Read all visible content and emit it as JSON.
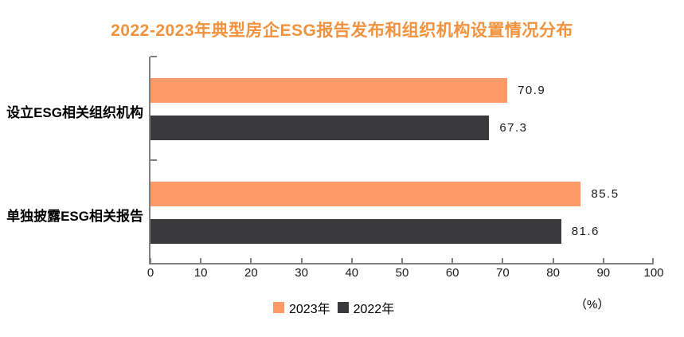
{
  "title": "2022-2023年典型房企ESG报告发布和组织机构设置情况分布",
  "colors": {
    "title": "#F0923E",
    "axis": "#808080",
    "series_2023": "#FB9A66",
    "series_2022": "#3A3A3C",
    "text": "#1a1a1a"
  },
  "chart_data": {
    "type": "bar",
    "orientation": "horizontal",
    "title": "2022-2023年典型房企ESG报告发布和组织机构设置情况分布",
    "categories": [
      "设立ESG相关组织机构",
      "单独披露ESG相关报告"
    ],
    "series": [
      {
        "name": "2023年",
        "color": "#FB9A66",
        "values": [
          70.9,
          85.5
        ]
      },
      {
        "name": "2022年",
        "color": "#3A3A3C",
        "values": [
          67.3,
          81.6
        ]
      }
    ],
    "xlim": [
      0,
      100
    ],
    "x_ticks": [
      0,
      10,
      20,
      30,
      40,
      50,
      60,
      70,
      80,
      90,
      100
    ],
    "unit_label": "（%）",
    "legend_position": "bottom",
    "grid": false,
    "data_labels": true
  }
}
